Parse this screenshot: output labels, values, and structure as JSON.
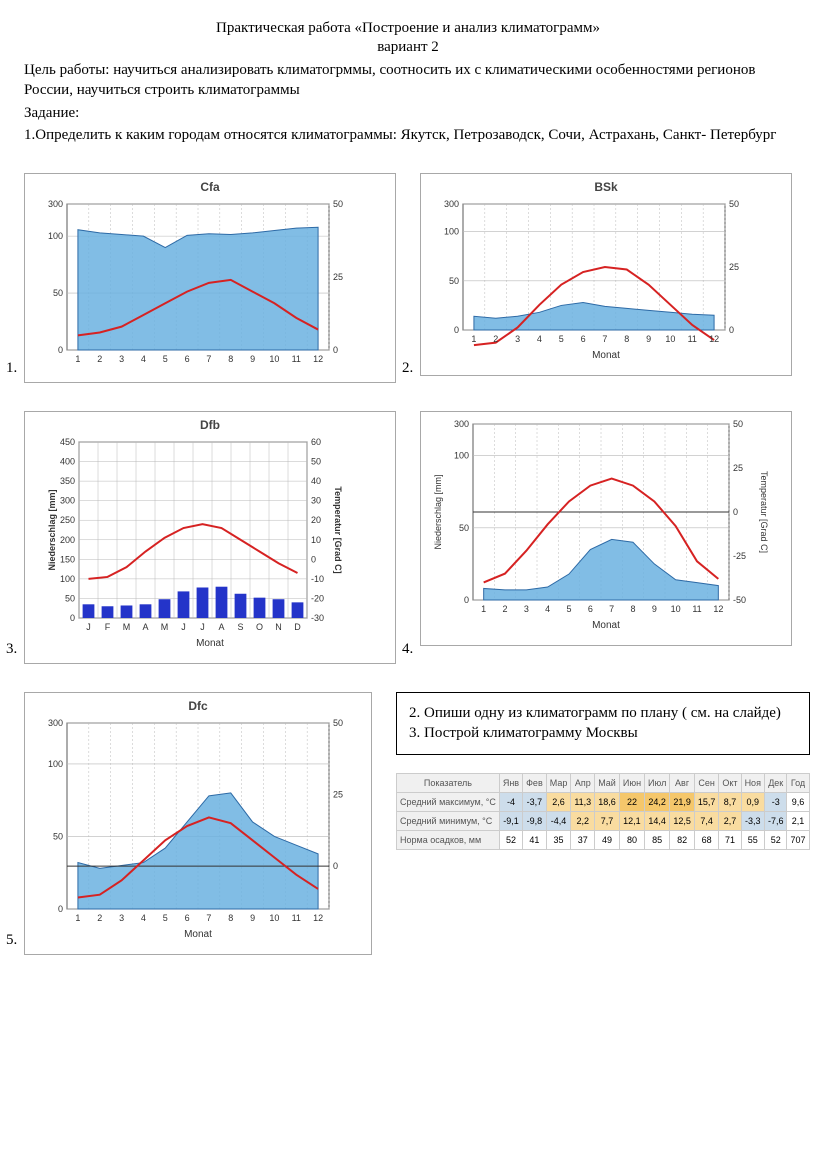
{
  "header": {
    "title": "Практическая работа «Построение и анализ климатограмм»",
    "subtitle": "вариант 2",
    "goal": "Цель работы: научиться анализировать климатогрммы, соотносить их с климатическими особенностями регионов России, научиться строить климатограммы",
    "task_label": "Задание:",
    "task1": "1.Определить к каким городам относятся климатограммы: Якутск, Петрозаводск, Сочи, Астрахань, Санкт- Петербург"
  },
  "charts": {
    "common": {
      "grid_color": "#b8b8b8",
      "border_color": "#5a5a5a",
      "precip_fill": "#6bb1e0",
      "precip_stroke": "#2d6aa6",
      "temp_stroke": "#d62222",
      "bar_fill": "#2434c9",
      "background": "#ffffff",
      "font_family": "Arial"
    },
    "c1": {
      "title": "Cfa",
      "x_title": "",
      "months": [
        1,
        2,
        3,
        4,
        5,
        6,
        7,
        8,
        9,
        10,
        11,
        12
      ],
      "precip_yticks": [
        0,
        50,
        100,
        300
      ],
      "temp_yticks": [
        0,
        25,
        50
      ],
      "precip": [
        140,
        120,
        110,
        100,
        90,
        105,
        115,
        110,
        120,
        135,
        150,
        155
      ],
      "temp": [
        5,
        6,
        8,
        12,
        16,
        20,
        23,
        24,
        20,
        16,
        11,
        7
      ],
      "type": "area_line"
    },
    "c2": {
      "title": "BSk",
      "x_title": "Monat",
      "months": [
        1,
        2,
        3,
        4,
        5,
        6,
        7,
        8,
        9,
        10,
        11,
        12
      ],
      "precip_yticks": [
        0,
        50,
        100,
        300
      ],
      "temp_yticks": [
        0,
        25,
        50
      ],
      "precip": [
        14,
        12,
        14,
        18,
        25,
        28,
        24,
        22,
        20,
        18,
        16,
        15
      ],
      "temp": [
        -6,
        -5,
        1,
        10,
        18,
        23,
        25,
        24,
        18,
        10,
        2,
        -4
      ],
      "type": "area_line"
    },
    "c3": {
      "title": "Dfb",
      "x_title": "Monat",
      "months": [
        "J",
        "F",
        "M",
        "A",
        "M",
        "J",
        "J",
        "A",
        "S",
        "O",
        "N",
        "D"
      ],
      "precip_yticks": [
        0,
        50,
        100,
        150,
        200,
        250,
        300,
        350,
        400,
        450
      ],
      "temp_yticks": [
        -30,
        -20,
        -10,
        0,
        10,
        20,
        30,
        40,
        50,
        60
      ],
      "precip": [
        35,
        30,
        32,
        35,
        48,
        68,
        78,
        80,
        62,
        52,
        48,
        40
      ],
      "temp": [
        -10,
        -9,
        -4,
        4,
        11,
        16,
        18,
        16,
        10,
        4,
        -2,
        -7
      ],
      "type": "bar_line"
    },
    "c4": {
      "title": "",
      "x_title": "Monat",
      "y_left_title": "Niederschlag [mm]",
      "y_right_title": "Temperatur [Grad C]",
      "months": [
        1,
        2,
        3,
        4,
        5,
        6,
        7,
        8,
        9,
        10,
        11,
        12
      ],
      "precip_yticks": [
        0,
        50,
        100,
        300
      ],
      "temp_yticks": [
        -50,
        -25,
        0,
        25,
        50
      ],
      "precip": [
        8,
        7,
        7,
        9,
        18,
        35,
        42,
        40,
        25,
        14,
        12,
        10
      ],
      "temp": [
        -40,
        -35,
        -22,
        -7,
        6,
        15,
        19,
        15,
        6,
        -8,
        -28,
        -38
      ],
      "type": "area_line_wide"
    },
    "c5": {
      "title": "Dfc",
      "x_title": "Monat",
      "months": [
        1,
        2,
        3,
        4,
        5,
        6,
        7,
        8,
        9,
        10,
        11,
        12
      ],
      "precip_yticks": [
        0,
        50,
        100,
        300
      ],
      "temp_yticks": [
        0,
        25,
        50
      ],
      "precip": [
        32,
        28,
        30,
        32,
        42,
        60,
        78,
        80,
        60,
        50,
        44,
        38
      ],
      "temp": [
        -11,
        -10,
        -5,
        2,
        9,
        14,
        17,
        15,
        9,
        3,
        -3,
        -8
      ],
      "type": "area_line"
    }
  },
  "taskbox": {
    "line1": "2. Опиши одну из климатограмм по плану ( см. на слайде)",
    "line2": "3. Построй климатограмму Москвы"
  },
  "table": {
    "header": [
      "Показатель",
      "Янв",
      "Фев",
      "Мар",
      "Апр",
      "Май",
      "Июн",
      "Июл",
      "Авг",
      "Сен",
      "Окт",
      "Ноя",
      "Дек",
      "Год"
    ],
    "rows": [
      {
        "label": "Средний максимум, °C",
        "vals": [
          "-4",
          "-3,7",
          "2,6",
          "11,3",
          "18,6",
          "22",
          "24,2",
          "21,9",
          "15,7",
          "8,7",
          "0,9",
          "-3",
          "9,6"
        ],
        "classes": [
          "cold",
          "cold",
          "warm",
          "warm",
          "warm",
          "hot",
          "hot",
          "hot",
          "warm",
          "warm",
          "warm",
          "cold",
          ""
        ]
      },
      {
        "label": "Средний минимум, °C",
        "vals": [
          "-9,1",
          "-9,8",
          "-4,4",
          "2,2",
          "7,7",
          "12,1",
          "14,4",
          "12,5",
          "7,4",
          "2,7",
          "-3,3",
          "-7,6",
          "2,1"
        ],
        "classes": [
          "cold",
          "cold",
          "cold",
          "warm",
          "warm",
          "warm",
          "warm",
          "warm",
          "warm",
          "warm",
          "cold",
          "cold",
          ""
        ]
      },
      {
        "label": "Норма осадков, мм",
        "vals": [
          "52",
          "41",
          "35",
          "37",
          "49",
          "80",
          "85",
          "82",
          "68",
          "71",
          "55",
          "52",
          "707"
        ],
        "classes": [
          "",
          "",
          "",
          "",
          "",
          "",
          "",
          "",
          "",
          "",
          "",
          "",
          ""
        ]
      }
    ]
  },
  "nums": {
    "n1": "1.",
    "n2": "2.",
    "n3": "3.",
    "n4": "4.",
    "n5": "5."
  }
}
